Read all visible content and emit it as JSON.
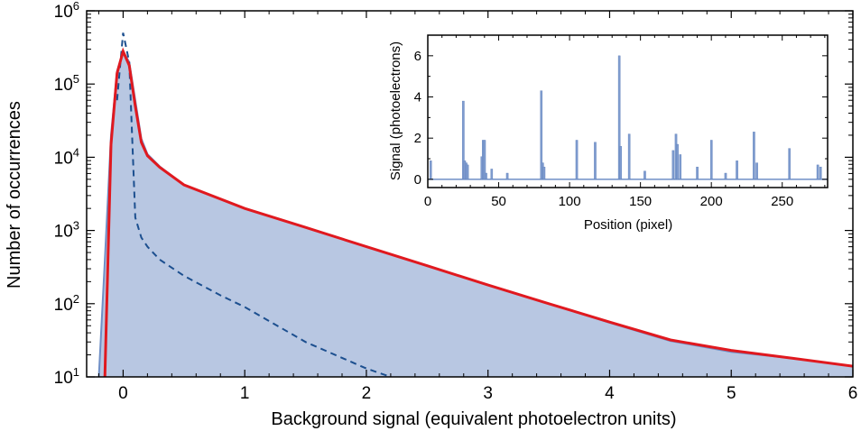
{
  "chart_data": [
    {
      "type": "area",
      "xlabel": "Background signal (equivalent photoelectron units)",
      "ylabel": "Number of occurrences",
      "xlim": [
        -0.3,
        6
      ],
      "ylim": [
        10,
        1000000
      ],
      "yscale": "log",
      "x_ticks": [
        "0",
        "1",
        "2",
        "3",
        "4",
        "5",
        "6"
      ],
      "y_tick_bases": [
        "10",
        "10",
        "10",
        "10",
        "10",
        "10"
      ],
      "y_tick_exponents": [
        "1",
        "2",
        "3",
        "4",
        "5",
        "6"
      ],
      "colors": {
        "histogram_fill": "#b8c7e2",
        "histogram_line": "#6f8fc6",
        "fit": "#e0191f",
        "model_dashed": "#1c4f8f"
      },
      "series": [
        {
          "style": "filled histogram",
          "x": [
            -0.2,
            -0.15,
            -0.1,
            -0.05,
            0.0,
            0.05,
            0.1,
            0.15,
            0.2,
            0.3,
            0.5,
            1.0,
            1.5,
            2.0,
            2.5,
            3.0,
            3.5,
            4.0,
            4.5,
            5.0,
            5.5,
            6.0
          ],
          "y": [
            10,
            400,
            20000,
            150000,
            280000,
            200000,
            60000,
            18000,
            11000,
            7500,
            4200,
            2000,
            1100,
            600,
            330,
            180,
            100,
            55,
            31,
            22,
            18,
            14
          ]
        },
        {
          "style": "solid red fit",
          "x": [
            -0.15,
            -0.1,
            -0.05,
            0.0,
            0.05,
            0.1,
            0.15,
            0.2,
            0.3,
            0.5,
            1.0,
            1.5,
            2.0,
            2.5,
            3.0,
            3.5,
            4.0,
            4.5,
            5.0,
            5.5,
            6.0
          ],
          "y": [
            10,
            15000,
            140000,
            280000,
            180000,
            50000,
            16000,
            10500,
            7300,
            4200,
            2000,
            1100,
            600,
            330,
            180,
            100,
            56,
            32,
            23,
            18,
            14
          ]
        },
        {
          "style": "dashed",
          "x": [
            -0.05,
            0.0,
            0.05,
            0.1,
            0.15,
            0.2,
            0.3,
            0.5,
            0.8,
            1.0,
            1.5,
            2.0,
            2.2
          ],
          "y": [
            60000,
            500000,
            200000,
            1500,
            800,
            600,
            400,
            240,
            130,
            90,
            30,
            13,
            10
          ]
        }
      ]
    },
    {
      "type": "bar",
      "xlabel": "Position (pixel)",
      "ylabel": "Signal (photoelectrons)",
      "xlim": [
        0,
        282
      ],
      "ylim": [
        -0.4,
        7
      ],
      "x_ticks": [
        "0",
        "50",
        "100",
        "150",
        "200",
        "250"
      ],
      "y_ticks": [
        "0",
        "2",
        "4",
        "6"
      ],
      "x": [
        2,
        25,
        26,
        27,
        28,
        38,
        39,
        40,
        41,
        45,
        56,
        80,
        81,
        82,
        105,
        118,
        135,
        136,
        142,
        153,
        173,
        175,
        176,
        178,
        190,
        200,
        210,
        218,
        230,
        232,
        255,
        275,
        277
      ],
      "values": [
        0.9,
        3.8,
        0.9,
        0.8,
        0.7,
        1.1,
        1.9,
        1.9,
        0.3,
        0.5,
        0.3,
        4.3,
        0.8,
        0.6,
        1.9,
        1.8,
        6.0,
        1.6,
        2.2,
        0.4,
        1.4,
        2.2,
        1.7,
        1.2,
        0.6,
        1.9,
        0.3,
        0.9,
        2.3,
        0.8,
        1.5,
        0.7,
        0.6
      ]
    }
  ]
}
